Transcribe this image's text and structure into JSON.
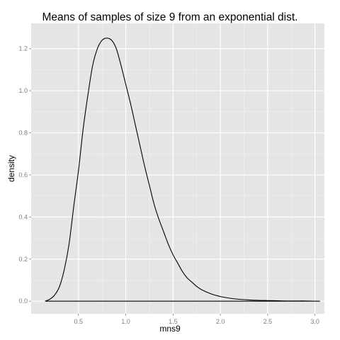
{
  "chart_data": {
    "type": "line",
    "title": "Means of samples of size 9 from an exponential dist.",
    "xlabel": "mns9",
    "ylabel": "density",
    "xlim": [
      0.0,
      3.1
    ],
    "ylim": [
      -0.06,
      1.32
    ],
    "x_ticks": [
      0.5,
      1.0,
      1.5,
      2.0,
      2.5,
      3.0
    ],
    "x_tick_labels": [
      "0.5",
      "1.0",
      "1.5",
      "2.0",
      "2.5",
      "3.0"
    ],
    "y_ticks": [
      0.0,
      0.2,
      0.4,
      0.6,
      0.8,
      1.0,
      1.2
    ],
    "y_tick_labels": [
      "0.0",
      "0.2",
      "0.4",
      "0.6",
      "0.8",
      "1.0",
      "1.2"
    ],
    "grid": true,
    "background": "#e5e5e5",
    "grid_major_color": "#ffffff",
    "grid_minor_color": "#f2f2f2",
    "line_color": "#000000",
    "series": [
      {
        "x": [
          0.15,
          0.2,
          0.25,
          0.3,
          0.35,
          0.4,
          0.45,
          0.5,
          0.55,
          0.6,
          0.65,
          0.7,
          0.75,
          0.8,
          0.85,
          0.9,
          0.95,
          1.0,
          1.05,
          1.1,
          1.15,
          1.2,
          1.25,
          1.3,
          1.35,
          1.4,
          1.45,
          1.5,
          1.55,
          1.6,
          1.65,
          1.7,
          1.75,
          1.8,
          1.9,
          2.0,
          2.1,
          2.2,
          2.3,
          2.4,
          2.5,
          2.6,
          2.7,
          2.8,
          2.9,
          3.0,
          3.05
        ],
        "y": [
          0.0,
          0.01,
          0.03,
          0.07,
          0.15,
          0.27,
          0.45,
          0.62,
          0.82,
          0.98,
          1.12,
          1.2,
          1.24,
          1.25,
          1.24,
          1.2,
          1.12,
          1.03,
          0.94,
          0.84,
          0.74,
          0.64,
          0.55,
          0.46,
          0.39,
          0.33,
          0.27,
          0.22,
          0.18,
          0.14,
          0.11,
          0.09,
          0.07,
          0.055,
          0.035,
          0.022,
          0.014,
          0.009,
          0.006,
          0.004,
          0.003,
          0.002,
          0.001,
          0.001,
          0.001,
          0.0,
          0.0
        ]
      }
    ]
  }
}
